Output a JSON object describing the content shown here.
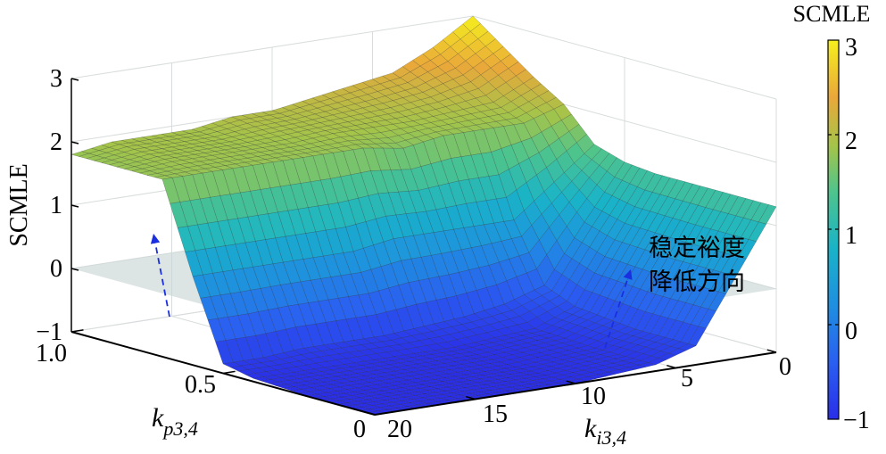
{
  "chart_data": {
    "type": "surface3d",
    "zlabel": "SCMLE",
    "xlabel": "k_i3,4",
    "xlabel_main": "k",
    "xlabel_sub": "i3,4",
    "ylabel": "k_p3,4",
    "ylabel_main": "k",
    "ylabel_sub": "p3,4",
    "x_ticks": [
      "0",
      "5",
      "10",
      "15",
      "20"
    ],
    "x_tick_values": [
      0,
      5,
      10,
      15,
      20
    ],
    "y_ticks": [
      "0",
      "0.5",
      "1.0"
    ],
    "y_tick_values": [
      0,
      0.5,
      1.0
    ],
    "z_ticks": [
      "3",
      "2",
      "1",
      "0",
      "−1"
    ],
    "z_tick_values": [
      3,
      2,
      1,
      0,
      -1
    ],
    "xlim": [
      0,
      20
    ],
    "ylim": [
      0,
      1
    ],
    "zlim": [
      -1,
      3
    ],
    "ki": [
      0,
      2,
      4,
      6,
      8,
      10,
      12,
      14,
      16,
      18,
      20
    ],
    "kp": [
      0,
      0.2,
      0.4,
      0.5,
      0.6,
      0.7,
      0.8,
      1.0
    ],
    "z": [
      [
        1.3,
        0.3,
        -0.7,
        -0.9,
        -0.95,
        -1,
        -1,
        -1,
        -1,
        -1,
        -1
      ],
      [
        1.3,
        0.3,
        -0.7,
        -0.9,
        -0.95,
        -1,
        -1,
        -1,
        -1,
        -1,
        -1
      ],
      [
        1.3,
        0.35,
        -0.6,
        -0.85,
        -0.9,
        -0.95,
        -0.95,
        -0.95,
        -0.95,
        -0.95,
        -0.95
      ],
      [
        1.35,
        0.5,
        -0.4,
        -0.6,
        -0.7,
        -0.75,
        -0.8,
        -0.8,
        -0.8,
        -0.85,
        -0.85
      ],
      [
        1.5,
        1.0,
        0.5,
        0.5,
        0.5,
        0.5,
        0.4,
        0.4,
        0.4,
        0.4,
        0.4
      ],
      [
        2.0,
        1.8,
        1.8,
        1.8,
        1.7,
        1.8,
        1.8,
        1.8,
        1.8,
        1.8,
        1.8
      ],
      [
        2.3,
        2.0,
        1.95,
        1.9,
        1.9,
        1.9,
        1.85,
        1.85,
        1.85,
        1.85,
        1.8
      ],
      [
        3.0,
        2.6,
        2.3,
        2.2,
        2.1,
        2.0,
        2.0,
        1.9,
        1.9,
        1.9,
        1.8
      ]
    ],
    "reference_plane_z": 0,
    "annotation": [
      "稳定裕度",
      "降低方向"
    ],
    "colorbar": {
      "title": "SCMLE",
      "ticks": [
        "3",
        "2",
        "1",
        "0",
        "−1"
      ],
      "tick_values": [
        3,
        2,
        1,
        0,
        -1
      ],
      "range": [
        -1,
        3
      ]
    },
    "arrow_color": "#1a2fe0",
    "plane_color": "#c9d6d6"
  }
}
